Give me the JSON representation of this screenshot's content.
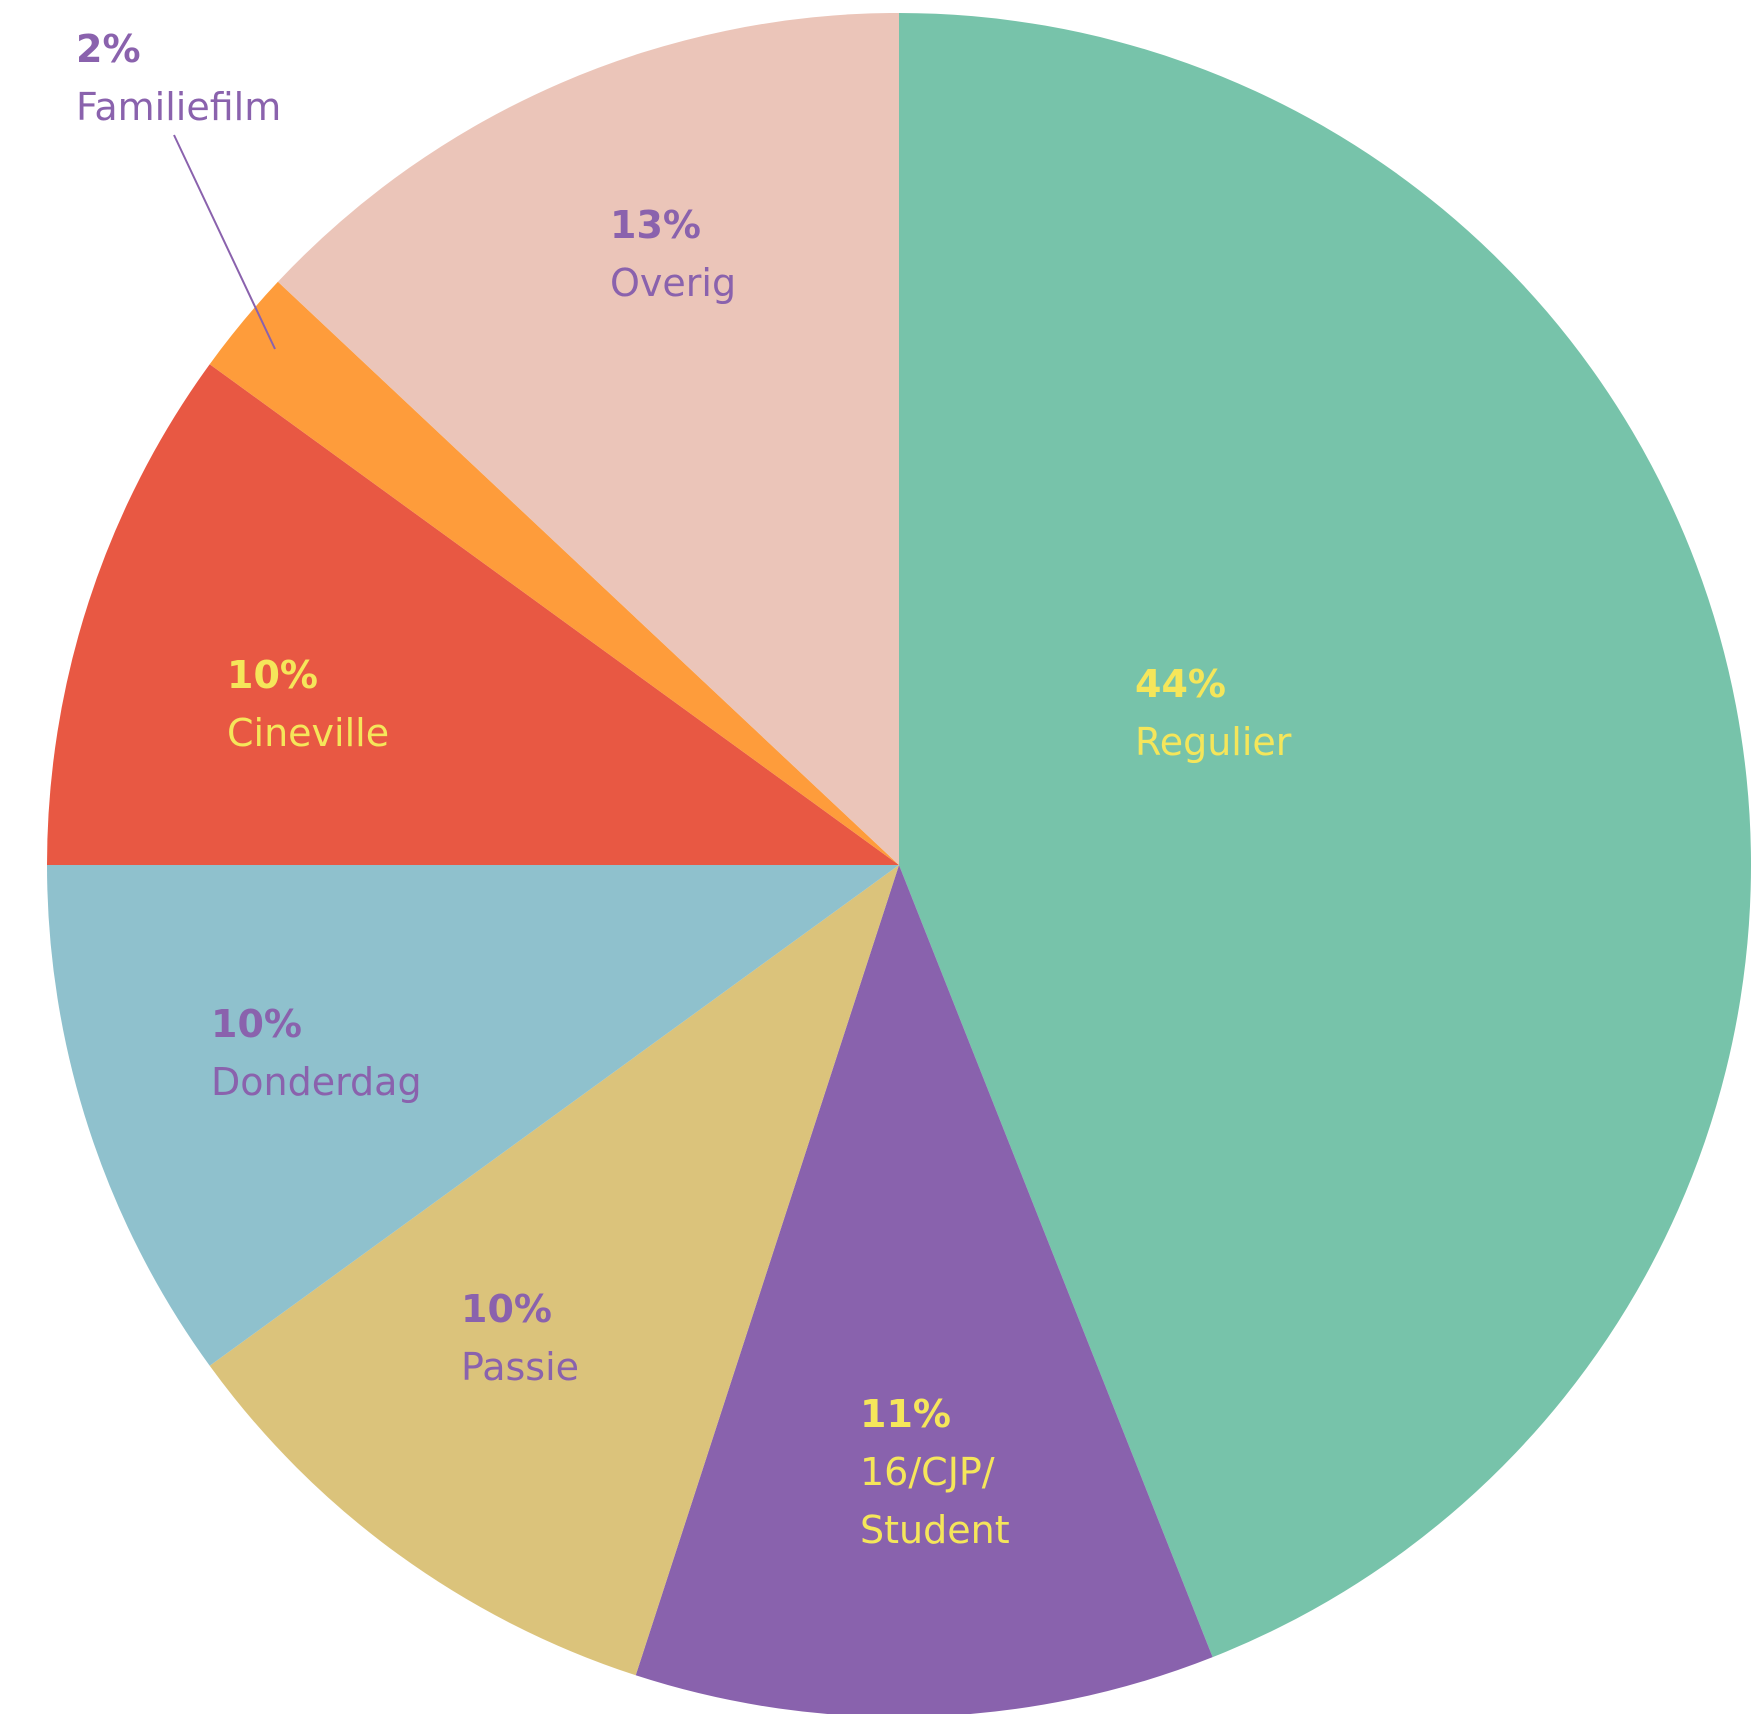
{
  "chart_data": {
    "type": "pie",
    "categories": [
      "Regulier",
      "16/CJP/\nStudent",
      "Passie",
      "Donderdag",
      "Cineville",
      "Familiefilm",
      "Overig"
    ],
    "values": [
      44,
      11,
      10,
      10,
      10,
      2,
      13
    ],
    "value_labels": [
      "44%",
      "11%",
      "10%",
      "10%",
      "10%",
      "2%",
      "13%"
    ],
    "colors": [
      "#77c3aa",
      "#8962ad",
      "#dbc37b",
      "#8fc1cd",
      "#e85843",
      "#fe9c3b",
      "#ebc5b9"
    ],
    "label_colors": [
      "#f5e65a",
      "#f5e65a",
      "#8a62ad",
      "#8a62ad",
      "#f5e65a",
      "#8a62ad",
      "#8a62ad"
    ]
  }
}
